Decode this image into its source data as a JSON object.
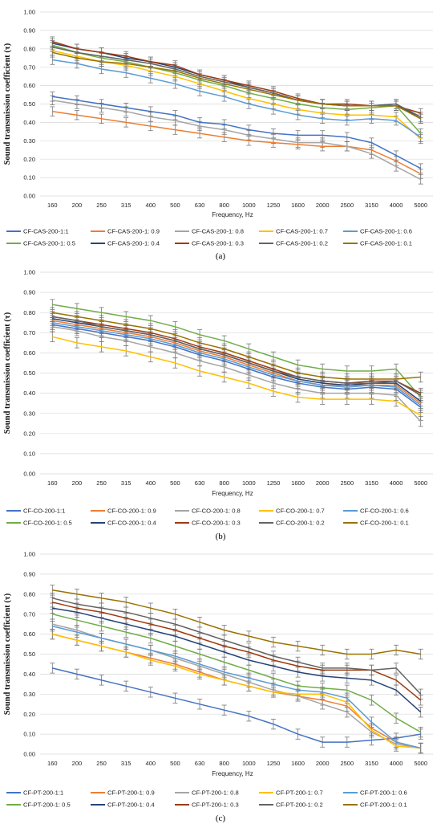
{
  "chart_data": [
    {
      "type": "line",
      "panel_label": "(a)",
      "ylabel": "Sound transmission coefficient (τ)",
      "xlabel": "Frequency, Hz",
      "x": [
        "160",
        "200",
        "250",
        "315",
        "400",
        "500",
        "630",
        "800",
        "1000",
        "1250",
        "1600",
        "2000",
        "2500",
        "3150",
        "4000",
        "5000"
      ],
      "yticks": [
        "0.00",
        "0.10",
        "0.20",
        "0.30",
        "0.40",
        "0.50",
        "0.60",
        "0.70",
        "0.80",
        "0.90",
        "1.00"
      ],
      "ylim": [
        0,
        1
      ],
      "grid": true,
      "error_bars": true,
      "legend_position": "bottom",
      "series": [
        {
          "name": "CF-CAS-200-1:1",
          "color": "#4472c4",
          "values": [
            0.54,
            0.52,
            0.5,
            0.48,
            0.46,
            0.44,
            0.4,
            0.39,
            0.36,
            0.34,
            0.33,
            0.33,
            0.32,
            0.29,
            0.22,
            0.15
          ]
        },
        {
          "name": "CF-CAS-200-1: 0.9",
          "color": "#ed7d31",
          "values": [
            0.46,
            0.44,
            0.42,
            0.4,
            0.38,
            0.36,
            0.34,
            0.32,
            0.3,
            0.29,
            0.28,
            0.27,
            0.27,
            0.25,
            0.19,
            0.12
          ]
        },
        {
          "name": "CF-CAS-200-1: 0.8",
          "color": "#a5a5a5",
          "values": [
            0.52,
            0.5,
            0.48,
            0.46,
            0.43,
            0.41,
            0.38,
            0.36,
            0.33,
            0.31,
            0.29,
            0.29,
            0.27,
            0.23,
            0.16,
            0.09
          ]
        },
        {
          "name": "CF-CAS-200-1: 0.7",
          "color": "#ffc000",
          "values": [
            0.79,
            0.76,
            0.73,
            0.71,
            0.68,
            0.65,
            0.61,
            0.57,
            0.53,
            0.5,
            0.47,
            0.45,
            0.44,
            0.44,
            0.43,
            0.31
          ]
        },
        {
          "name": "CF-CAS-200-1: 0.6",
          "color": "#5b9bd5",
          "values": [
            0.74,
            0.72,
            0.69,
            0.67,
            0.64,
            0.61,
            0.57,
            0.54,
            0.5,
            0.47,
            0.44,
            0.42,
            0.41,
            0.42,
            0.41,
            0.32
          ]
        },
        {
          "name": "CF-CAS-200-1: 0.5",
          "color": "#70ad47",
          "values": [
            0.82,
            0.78,
            0.75,
            0.73,
            0.7,
            0.67,
            0.63,
            0.6,
            0.56,
            0.53,
            0.5,
            0.48,
            0.47,
            0.48,
            0.49,
            0.34
          ]
        },
        {
          "name": "CF-CAS-200-1: 0.4",
          "color": "#264478",
          "values": [
            0.83,
            0.8,
            0.78,
            0.75,
            0.73,
            0.7,
            0.66,
            0.63,
            0.59,
            0.56,
            0.52,
            0.5,
            0.49,
            0.49,
            0.5,
            0.42
          ]
        },
        {
          "name": "CF-CAS-200-1: 0.3",
          "color": "#9e3a10",
          "values": [
            0.84,
            0.8,
            0.78,
            0.76,
            0.73,
            0.71,
            0.66,
            0.63,
            0.6,
            0.57,
            0.53,
            0.5,
            0.5,
            0.49,
            0.49,
            0.45
          ]
        },
        {
          "name": "CF-CAS-200-1: 0.2",
          "color": "#636363",
          "values": [
            0.81,
            0.78,
            0.76,
            0.74,
            0.72,
            0.69,
            0.65,
            0.62,
            0.59,
            0.56,
            0.52,
            0.5,
            0.49,
            0.49,
            0.5,
            0.43
          ]
        },
        {
          "name": "CF-CAS-200-1: 0.1",
          "color": "#997300",
          "values": [
            0.78,
            0.75,
            0.73,
            0.72,
            0.7,
            0.68,
            0.64,
            0.61,
            0.58,
            0.55,
            0.52,
            0.5,
            0.49,
            0.49,
            0.49,
            0.42
          ]
        }
      ]
    },
    {
      "type": "line",
      "panel_label": "(b)",
      "ylabel": "Sound transmission coefficient (τ)",
      "xlabel": "Frequency, Hz",
      "x": [
        "160",
        "200",
        "250",
        "315",
        "400",
        "500",
        "630",
        "800",
        "1000",
        "1250",
        "1600",
        "2000",
        "2500",
        "3150",
        "4000",
        "5000"
      ],
      "yticks": [
        "0.00",
        "0.10",
        "0.20",
        "0.30",
        "0.40",
        "0.50",
        "0.60",
        "0.70",
        "0.80",
        "0.90",
        "1.00"
      ],
      "ylim": [
        0,
        1
      ],
      "grid": true,
      "error_bars": true,
      "legend_position": "bottom",
      "series": [
        {
          "name": "CF-CO-200-1:1",
          "color": "#4472c4",
          "values": [
            0.74,
            0.72,
            0.7,
            0.68,
            0.66,
            0.63,
            0.59,
            0.56,
            0.52,
            0.48,
            0.45,
            0.43,
            0.42,
            0.43,
            0.42,
            0.33
          ]
        },
        {
          "name": "CF-CO-200-1: 0.9",
          "color": "#ed7d31",
          "values": [
            0.76,
            0.74,
            0.72,
            0.7,
            0.68,
            0.65,
            0.61,
            0.58,
            0.54,
            0.5,
            0.46,
            0.44,
            0.44,
            0.44,
            0.44,
            0.35
          ]
        },
        {
          "name": "CF-CO-200-1: 0.8",
          "color": "#a5a5a5",
          "values": [
            0.73,
            0.71,
            0.68,
            0.66,
            0.63,
            0.6,
            0.56,
            0.53,
            0.49,
            0.45,
            0.42,
            0.4,
            0.4,
            0.4,
            0.39,
            0.26
          ]
        },
        {
          "name": "CF-CO-200-1: 0.7",
          "color": "#ffc000",
          "values": [
            0.68,
            0.65,
            0.63,
            0.61,
            0.58,
            0.55,
            0.51,
            0.48,
            0.45,
            0.41,
            0.38,
            0.37,
            0.37,
            0.37,
            0.36,
            0.29
          ]
        },
        {
          "name": "CF-CO-200-1: 0.6",
          "color": "#5b9bd5",
          "values": [
            0.75,
            0.73,
            0.71,
            0.69,
            0.67,
            0.64,
            0.6,
            0.57,
            0.53,
            0.49,
            0.46,
            0.44,
            0.43,
            0.44,
            0.43,
            0.34
          ]
        },
        {
          "name": "CF-CO-200-1: 0.5",
          "color": "#70ad47",
          "values": [
            0.84,
            0.82,
            0.8,
            0.78,
            0.76,
            0.73,
            0.69,
            0.66,
            0.62,
            0.58,
            0.54,
            0.52,
            0.51,
            0.51,
            0.52,
            0.38
          ]
        },
        {
          "name": "CF-CO-200-1: 0.4",
          "color": "#264478",
          "values": [
            0.77,
            0.75,
            0.73,
            0.71,
            0.69,
            0.66,
            0.62,
            0.59,
            0.55,
            0.51,
            0.47,
            0.45,
            0.44,
            0.45,
            0.45,
            0.36
          ]
        },
        {
          "name": "CF-CO-200-1: 0.3",
          "color": "#9e3a10",
          "values": [
            0.78,
            0.76,
            0.74,
            0.72,
            0.7,
            0.67,
            0.63,
            0.6,
            0.56,
            0.52,
            0.48,
            0.46,
            0.45,
            0.46,
            0.46,
            0.4
          ]
        },
        {
          "name": "CF-CO-200-1: 0.2",
          "color": "#636363",
          "values": [
            0.78,
            0.76,
            0.73,
            0.71,
            0.69,
            0.66,
            0.62,
            0.59,
            0.55,
            0.51,
            0.48,
            0.46,
            0.45,
            0.45,
            0.46,
            0.39
          ]
        },
        {
          "name": "CF-CO-200-1: 0.1",
          "color": "#997300",
          "values": [
            0.8,
            0.78,
            0.76,
            0.74,
            0.72,
            0.69,
            0.65,
            0.62,
            0.58,
            0.54,
            0.5,
            0.48,
            0.47,
            0.47,
            0.47,
            0.48
          ]
        }
      ]
    },
    {
      "type": "line",
      "panel_label": "(c)",
      "ylabel": "Sound transmission coefficient (τ)",
      "xlabel": "Frequency, Hz",
      "x": [
        "160",
        "200",
        "250",
        "315",
        "400",
        "500",
        "630",
        "800",
        "1000",
        "1250",
        "1600",
        "2000",
        "2500",
        "3150",
        "4000",
        "5000"
      ],
      "yticks": [
        "0.00",
        "0.10",
        "0.20",
        "0.30",
        "0.40",
        "0.50",
        "0.60",
        "0.70",
        "0.80",
        "0.90",
        "1.00"
      ],
      "ylim": [
        0,
        1
      ],
      "grid": true,
      "error_bars": true,
      "legend_position": "bottom",
      "series": [
        {
          "name": "CF-PT-200-1:1",
          "color": "#4472c4",
          "values": [
            0.43,
            0.4,
            0.37,
            0.34,
            0.31,
            0.28,
            0.25,
            0.22,
            0.19,
            0.15,
            0.1,
            0.06,
            0.06,
            0.07,
            0.08,
            0.1
          ]
        },
        {
          "name": "CF-PT-200-1: 0.9",
          "color": "#ed7d31",
          "values": [
            0.6,
            0.57,
            0.54,
            0.51,
            0.48,
            0.45,
            0.41,
            0.37,
            0.34,
            0.31,
            0.29,
            0.27,
            0.24,
            0.13,
            0.06,
            0.03
          ]
        },
        {
          "name": "CF-PT-200-1: 0.8",
          "color": "#a5a5a5",
          "values": [
            0.65,
            0.62,
            0.58,
            0.55,
            0.52,
            0.48,
            0.44,
            0.4,
            0.36,
            0.32,
            0.29,
            0.25,
            0.21,
            0.11,
            0.05,
            0.03
          ]
        },
        {
          "name": "CF-PT-200-1: 0.7",
          "color": "#ffc000",
          "values": [
            0.6,
            0.57,
            0.54,
            0.51,
            0.47,
            0.44,
            0.4,
            0.37,
            0.34,
            0.31,
            0.3,
            0.3,
            0.26,
            0.12,
            0.04,
            0.03
          ]
        },
        {
          "name": "CF-PT-200-1: 0.6",
          "color": "#5b9bd5",
          "values": [
            0.64,
            0.61,
            0.58,
            0.55,
            0.52,
            0.49,
            0.45,
            0.41,
            0.38,
            0.35,
            0.32,
            0.31,
            0.28,
            0.16,
            0.06,
            0.03
          ]
        },
        {
          "name": "CF-PT-200-1: 0.5",
          "color": "#70ad47",
          "values": [
            0.7,
            0.67,
            0.64,
            0.61,
            0.58,
            0.54,
            0.5,
            0.46,
            0.42,
            0.38,
            0.34,
            0.33,
            0.32,
            0.27,
            0.18,
            0.11
          ]
        },
        {
          "name": "CF-PT-200-1: 0.4",
          "color": "#264478",
          "values": [
            0.73,
            0.71,
            0.68,
            0.65,
            0.62,
            0.59,
            0.55,
            0.51,
            0.47,
            0.44,
            0.41,
            0.39,
            0.38,
            0.37,
            0.32,
            0.21
          ]
        },
        {
          "name": "CF-PT-200-1: 0.3",
          "color": "#9e3a10",
          "values": [
            0.76,
            0.73,
            0.71,
            0.68,
            0.65,
            0.62,
            0.58,
            0.54,
            0.51,
            0.47,
            0.44,
            0.42,
            0.42,
            0.42,
            0.37,
            0.27
          ]
        },
        {
          "name": "CF-PT-200-1: 0.2",
          "color": "#636363",
          "values": [
            0.78,
            0.75,
            0.73,
            0.71,
            0.68,
            0.65,
            0.61,
            0.57,
            0.53,
            0.49,
            0.46,
            0.43,
            0.43,
            0.42,
            0.43,
            0.3
          ]
        },
        {
          "name": "CF-PT-200-1: 0.1",
          "color": "#997300",
          "values": [
            0.82,
            0.8,
            0.78,
            0.76,
            0.73,
            0.7,
            0.66,
            0.62,
            0.59,
            0.56,
            0.54,
            0.52,
            0.5,
            0.5,
            0.52,
            0.5
          ]
        }
      ]
    }
  ]
}
